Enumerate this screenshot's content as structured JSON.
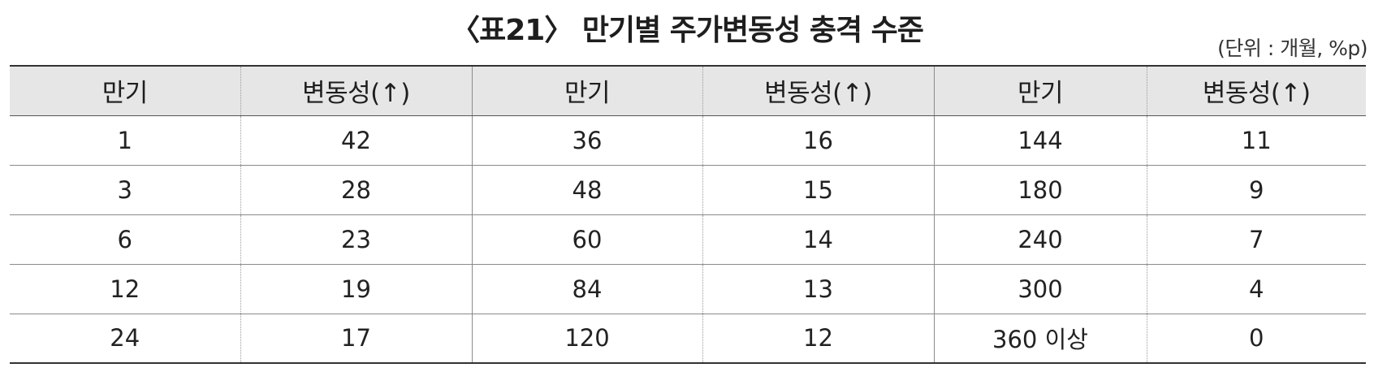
{
  "table": {
    "title": "〈표21〉 만기별 주가변동성 충격 수준",
    "unit": "(단위 : 개월, %p)",
    "headers": [
      "만기",
      "변동성(↑)",
      "만기",
      "변동성(↑)",
      "만기",
      "변동성(↑)"
    ],
    "rows": [
      [
        "1",
        "42",
        "36",
        "16",
        "144",
        "11"
      ],
      [
        "3",
        "28",
        "48",
        "15",
        "180",
        "9"
      ],
      [
        "6",
        "23",
        "60",
        "14",
        "240",
        "7"
      ],
      [
        "12",
        "19",
        "84",
        "13",
        "300",
        "4"
      ],
      [
        "24",
        "17",
        "120",
        "12",
        "360 이상",
        "0"
      ]
    ]
  }
}
